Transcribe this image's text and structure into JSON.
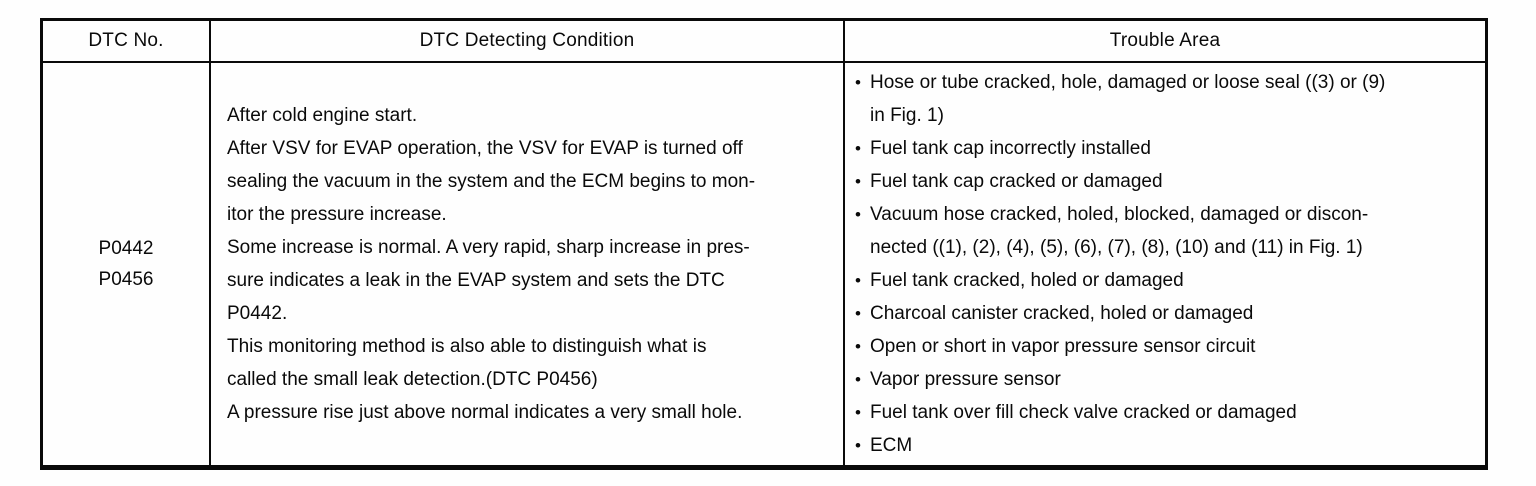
{
  "table": {
    "headers": {
      "dtc_no": "DTC No.",
      "detecting_condition": "DTC Detecting Condition",
      "trouble_area": "Trouble Area"
    },
    "bullet_char": "•",
    "dtc": {
      "codes": [
        "P0442",
        "P0456"
      ]
    },
    "condition": {
      "lines": [
        "After cold engine start.",
        "After VSV for EVAP operation, the VSV for EVAP is turned off",
        "sealing the vacuum in the system and the ECM begins to mon-",
        "itor the pressure increase.",
        "Some increase is normal. A very rapid, sharp increase in pres-",
        "sure indicates a leak in the EVAP system and sets the DTC",
        "P0442.",
        "This monitoring method is also able to distinguish what is",
        "called the small leak detection.(DTC P0456)",
        "A pressure rise just above normal indicates a very small hole."
      ]
    },
    "trouble": {
      "items": [
        {
          "lines": [
            "Hose or tube cracked, hole, damaged or loose seal ((3) or (9)",
            "in Fig. 1)"
          ]
        },
        {
          "lines": [
            "Fuel tank cap incorrectly installed"
          ]
        },
        {
          "lines": [
            "Fuel tank cap cracked or damaged"
          ]
        },
        {
          "lines": [
            "Vacuum hose cracked, holed, blocked, damaged or discon-",
            "nected ((1), (2), (4), (5), (6), (7), (8), (10) and (11) in Fig. 1)"
          ]
        },
        {
          "lines": [
            "Fuel tank cracked, holed or damaged"
          ]
        },
        {
          "lines": [
            "Charcoal canister cracked, holed or damaged"
          ]
        },
        {
          "lines": [
            "Open or short in vapor pressure sensor circuit"
          ]
        },
        {
          "lines": [
            "Vapor pressure sensor"
          ]
        },
        {
          "lines": [
            "Fuel tank over fill check valve cracked or damaged"
          ]
        },
        {
          "lines": [
            "ECM"
          ]
        }
      ]
    }
  }
}
